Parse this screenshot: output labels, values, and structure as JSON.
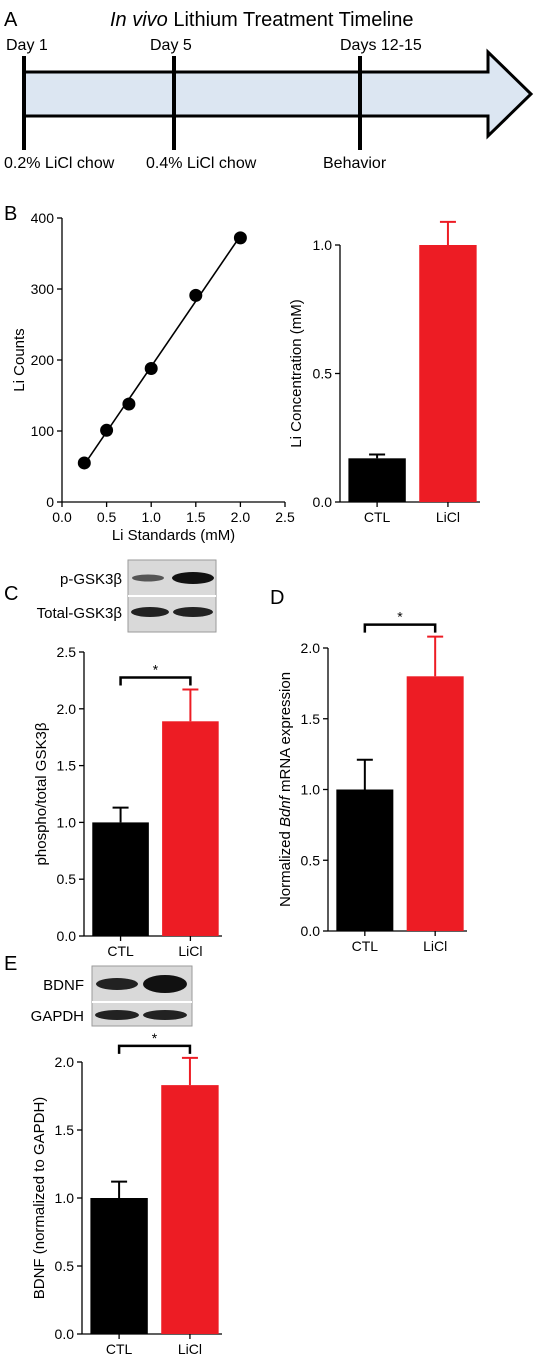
{
  "panel_letters": [
    "A",
    "B",
    "C",
    "D",
    "E"
  ],
  "timeline": {
    "title_italic": "In vivo",
    "title_rest": " Lithium Treatment Timeline",
    "top_labels": [
      "Day 1",
      "Day 5",
      "Days 12-15"
    ],
    "bottom_labels": [
      "0.2% LiCl chow",
      "0.4% LiCl chow",
      "Behavior"
    ],
    "colors": {
      "arrow_fill": "#dce6f2",
      "line": "#000000"
    }
  },
  "blots": {
    "C": {
      "rows": [
        "p-GSK3β",
        "Total-GSK3β"
      ]
    },
    "E": {
      "rows": [
        "BDNF",
        "GAPDH"
      ]
    }
  },
  "significance": "*",
  "chart_data": [
    {
      "id": "B-left",
      "type": "scatter",
      "xlabel": "Li Standards (mM)",
      "ylabel": "Li Counts",
      "xlim": [
        0,
        2.5
      ],
      "ylim": [
        0,
        400
      ],
      "xticks": [
        "0.0",
        "0.5",
        "1.0",
        "1.5",
        "2.0",
        "2.5"
      ],
      "yticks": [
        "0",
        "100",
        "200",
        "300",
        "400"
      ],
      "x": [
        0.25,
        0.5,
        0.75,
        1.0,
        1.5,
        2.0
      ],
      "y": [
        55,
        101,
        138,
        188,
        291,
        372
      ],
      "fit_line": true,
      "marker_color": "#000000"
    },
    {
      "id": "B-right",
      "type": "bar",
      "ylabel": "Li Concentration (mM)",
      "categories": [
        "CTL",
        "LiCl"
      ],
      "values": [
        0.17,
        1.0
      ],
      "errors": [
        0.015,
        0.09
      ],
      "ylim": [
        0,
        1.0
      ],
      "yticks": [
        "0.0",
        "0.5",
        "1.0"
      ],
      "colors": [
        "#000000",
        "#ed1c24"
      ],
      "significance": false
    },
    {
      "id": "C",
      "type": "bar",
      "ylabel": "phospho/total GSK3β",
      "categories": [
        "CTL",
        "LiCl"
      ],
      "values": [
        1.0,
        1.89
      ],
      "errors": [
        0.13,
        0.28
      ],
      "ylim": [
        0,
        2.5
      ],
      "yticks": [
        "0.0",
        "0.5",
        "1.0",
        "1.5",
        "2.0",
        "2.5"
      ],
      "colors": [
        "#000000",
        "#ed1c24"
      ],
      "significance": true
    },
    {
      "id": "D",
      "type": "bar",
      "ylabel_parts": [
        "Normalized ",
        "Bdnf",
        " mRNA expression"
      ],
      "categories": [
        "CTL",
        "LiCl"
      ],
      "values": [
        1.0,
        1.8
      ],
      "errors": [
        0.21,
        0.28
      ],
      "ylim": [
        0,
        2.0
      ],
      "yticks": [
        "0.0",
        "0.5",
        "1.0",
        "1.5",
        "2.0"
      ],
      "colors": [
        "#000000",
        "#ed1c24"
      ],
      "significance": true
    },
    {
      "id": "E",
      "type": "bar",
      "ylabel": "BDNF (normalized to GAPDH)",
      "categories": [
        "CTL",
        "LiCl"
      ],
      "values": [
        1.0,
        1.83
      ],
      "errors": [
        0.12,
        0.2
      ],
      "ylim": [
        0,
        2.0
      ],
      "yticks": [
        "0.0",
        "0.5",
        "1.0",
        "1.5",
        "2.0"
      ],
      "colors": [
        "#000000",
        "#ed1c24"
      ],
      "significance": true
    }
  ]
}
